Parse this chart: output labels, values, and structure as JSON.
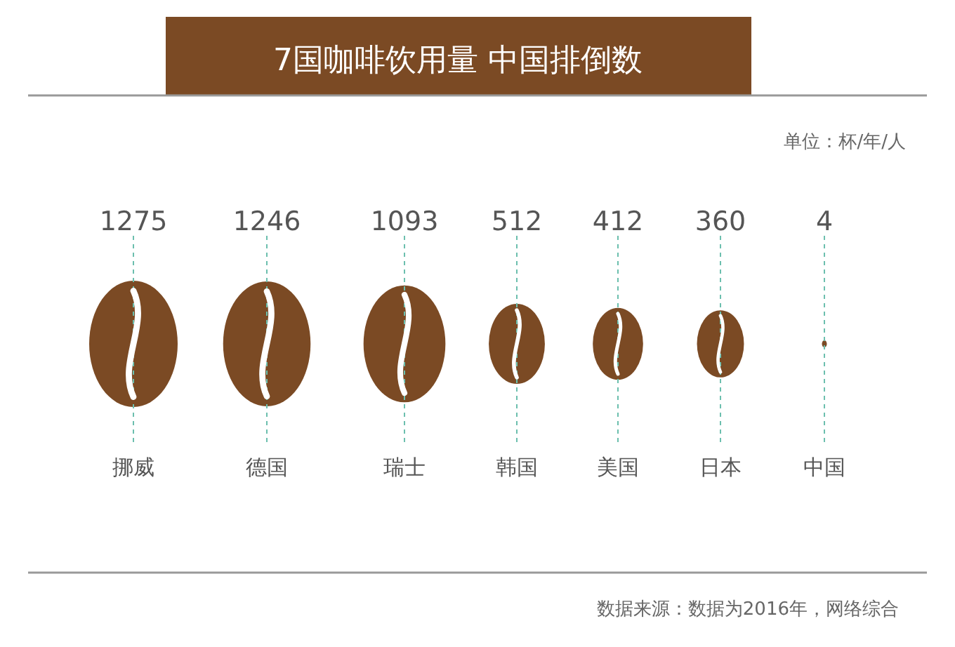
{
  "chart_data": {
    "type": "other",
    "title": "7国咖啡饮用量 中国排倒数",
    "categories": [
      "挪威",
      "德国",
      "瑞士",
      "韩国",
      "美国",
      "日本",
      "中国"
    ],
    "values": [
      1275,
      1246,
      1093,
      512,
      412,
      360,
      4
    ],
    "color": "#7b4a24",
    "data_labels": true,
    "annotations": [
      "单位：杯/年/人",
      "数据来源：数据为2016年，网络综合"
    ]
  }
}
